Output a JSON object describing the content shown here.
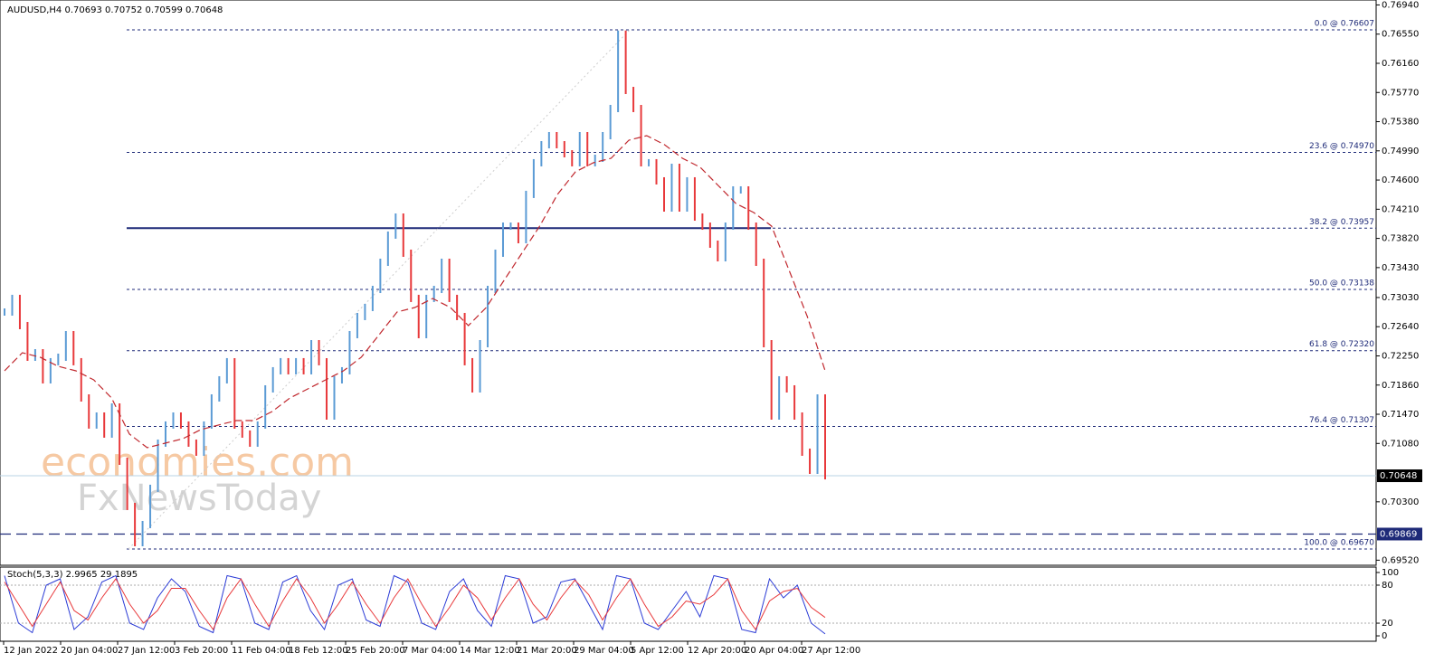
{
  "chart_data": {
    "type": "bar",
    "title": "AUDUSD,H4  0.70693 0.70752 0.70599 0.70648",
    "watermarks": [
      "economies.com",
      "FxNewsToday"
    ],
    "up_color": "#5b9bd5",
    "down_color": "#e8393b",
    "ma_color": "#c0272d",
    "ylim": [
      0.69476,
      0.77006
    ],
    "yticks": [
      {
        "value": 0.6952,
        "label": "0.69520"
      },
      {
        "value": 0.703,
        "label": "0.70300"
      },
      {
        "value": 0.7108,
        "label": "0.71080"
      },
      {
        "value": 0.7147,
        "label": "0.71470"
      },
      {
        "value": 0.7186,
        "label": "0.71860"
      },
      {
        "value": 0.7225,
        "label": "0.72250"
      },
      {
        "value": 0.7264,
        "label": "0.72640"
      },
      {
        "value": 0.7303,
        "label": "0.73030"
      },
      {
        "value": 0.7343,
        "label": "0.73430"
      },
      {
        "value": 0.7382,
        "label": "0.73820"
      },
      {
        "value": 0.7421,
        "label": "0.74210"
      },
      {
        "value": 0.746,
        "label": "0.74600"
      },
      {
        "value": 0.7499,
        "label": "0.74990"
      },
      {
        "value": 0.7538,
        "label": "0.75380"
      },
      {
        "value": 0.7577,
        "label": "0.75770"
      },
      {
        "value": 0.7616,
        "label": "0.76160"
      },
      {
        "value": 0.7655,
        "label": "0.76550"
      },
      {
        "value": 0.7694,
        "label": "0.76940"
      }
    ],
    "current_price": {
      "value": 0.70648,
      "label": "0.70648"
    },
    "hline": {
      "value": 0.69869,
      "label": "0.69869"
    },
    "fibonacci": [
      {
        "value": 0.76607,
        "label": "0.0 @ 0.76607"
      },
      {
        "value": 0.7497,
        "label": "23.6 @ 0.74970"
      },
      {
        "value": 0.73957,
        "label": "38.2 @ 0.73957"
      },
      {
        "value": 0.73138,
        "label": "50.0 @ 0.73138"
      },
      {
        "value": 0.7232,
        "label": "61.8 @ 0.72320"
      },
      {
        "value": 0.71307,
        "label": "76.4 @ 0.71307"
      },
      {
        "value": 0.6967,
        "label": "100.0 @ 0.69670"
      }
    ],
    "x_labels": [
      "12 Jan 2022",
      "20 Jan 04:00",
      "27 Jan 12:00",
      "3 Feb 20:00",
      "11 Feb 04:00",
      "18 Feb 12:00",
      "25 Feb 20:00",
      "7 Mar 04:00",
      "14 Mar 12:00",
      "21 Mar 20:00",
      "29 Mar 04:00",
      "5 Apr 12:00",
      "12 Apr 20:00",
      "20 Apr 04:00",
      "27 Apr 12:00"
    ],
    "series": [
      {
        "name": "AUDUSD",
        "values": [
          0.72836,
          0.73018,
          0.72655,
          0.72232,
          0.72292,
          0.7193,
          0.72172,
          0.72232,
          0.72534,
          0.72172,
          0.71688,
          0.71326,
          0.71446,
          0.71205,
          0.71567,
          0.70842,
          0.70238,
          0.69754,
          0.69996,
          0.7048,
          0.71084,
          0.71326,
          0.71446,
          0.71326,
          0.71084,
          0.70963,
          0.71326,
          0.71688,
          0.7193,
          0.72172,
          0.71326,
          0.71205,
          0.71084,
          0.71326,
          0.71809,
          0.72051,
          0.72172,
          0.72051,
          0.72172,
          0.72051,
          0.72413,
          0.72172,
          0.71446,
          0.7193,
          0.72051,
          0.72534,
          0.72776,
          0.72897,
          0.73138,
          0.73501,
          0.73864,
          0.74105,
          0.73622,
          0.73018,
          0.72534,
          0.73018,
          0.73138,
          0.73501,
          0.73018,
          0.72776,
          0.72172,
          0.71809,
          0.72413,
          0.73138,
          0.73622,
          0.73984,
          0.73984,
          0.73803,
          0.74408,
          0.74831,
          0.75072,
          0.75193,
          0.75072,
          0.74951,
          0.74831,
          0.75193,
          0.74831,
          0.74891,
          0.75193,
          0.75556,
          0.7655,
          0.75797,
          0.75556,
          0.74831,
          0.74831,
          0.74589,
          0.74226,
          0.7477,
          0.74226,
          0.74589,
          0.74105,
          0.73984,
          0.73743,
          0.73561,
          0.73984,
          0.74468,
          0.74468,
          0.73984,
          0.73501,
          0.72413,
          0.71446,
          0.7193,
          0.71809,
          0.71446,
          0.70963,
          0.70721,
          0.71688,
          0.70648
        ]
      },
      {
        "name": "MA",
        "values": [
          0.72051,
          0.72292,
          0.72232,
          0.72111,
          0.72051,
          0.7193,
          0.71688,
          0.71205,
          0.71023,
          0.71084,
          0.71144,
          0.71265,
          0.71326,
          0.71386,
          0.71386,
          0.71507,
          0.71688,
          0.71809,
          0.7193,
          0.72051,
          0.72232,
          0.72534,
          0.72836,
          0.72897,
          0.73018,
          0.72897,
          0.72655,
          0.72897,
          0.73259,
          0.73622,
          0.73984,
          0.74408,
          0.7471,
          0.74831,
          0.74891,
          0.75133,
          0.75193,
          0.75072,
          0.74891,
          0.7477,
          0.74528,
          0.74287,
          0.74166,
          0.73984,
          0.7338,
          0.72776,
          0.72051
        ]
      }
    ],
    "stochastic": {
      "title": "Stoch(5,3,3) 2.9965 29.1895",
      "ylim": [
        -8.5,
        108.5
      ],
      "yticks": [
        0,
        20,
        80,
        100
      ],
      "levels": [
        20,
        80
      ],
      "series": [
        {
          "name": "main",
          "color": "#2b3bd6",
          "values": [
            95,
            20,
            5,
            80,
            90,
            10,
            30,
            85,
            95,
            20,
            10,
            60,
            90,
            70,
            15,
            5,
            95,
            90,
            20,
            10,
            85,
            95,
            40,
            10,
            80,
            90,
            25,
            15,
            95,
            85,
            20,
            10,
            70,
            90,
            40,
            15,
            95,
            90,
            20,
            30,
            85,
            90,
            50,
            10,
            95,
            90,
            20,
            10,
            40,
            70,
            30,
            95,
            90,
            10,
            5,
            90,
            60,
            80,
            20,
            3
          ]
        },
        {
          "name": "signal",
          "color": "#e8393b",
          "values": [
            85,
            50,
            15,
            50,
            85,
            40,
            25,
            60,
            90,
            50,
            20,
            40,
            75,
            75,
            40,
            10,
            60,
            90,
            50,
            15,
            55,
            90,
            60,
            20,
            50,
            85,
            50,
            20,
            60,
            90,
            50,
            15,
            45,
            80,
            60,
            25,
            60,
            90,
            50,
            25,
            60,
            88,
            65,
            25,
            60,
            90,
            50,
            15,
            30,
            55,
            50,
            65,
            90,
            40,
            10,
            55,
            70,
            75,
            45,
            29
          ]
        }
      ]
    }
  }
}
